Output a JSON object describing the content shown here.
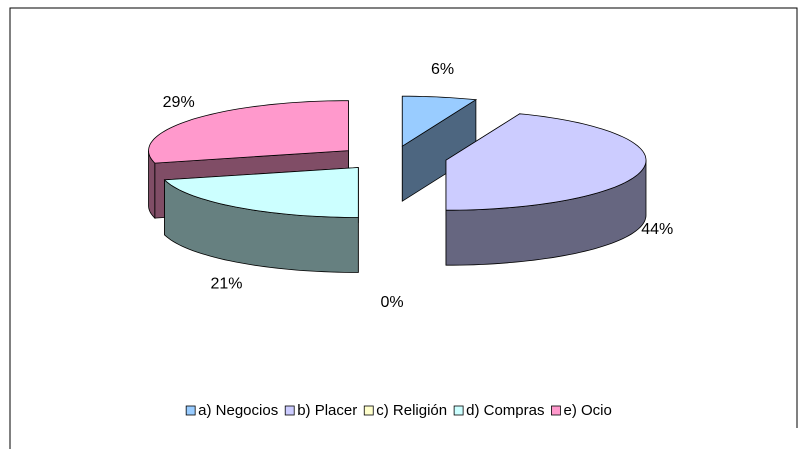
{
  "chart_data": {
    "type": "pie",
    "categories": [
      "a) Negocios",
      "b) Placer",
      "c) Religión",
      "d) Compras",
      "e) Ocio"
    ],
    "values": [
      6,
      44,
      0,
      21,
      29
    ],
    "value_labels": [
      "6%",
      "44%",
      "0%",
      "21%",
      "29%"
    ],
    "colors": [
      "#99ccff",
      "#ccccff",
      "#ffffcc",
      "#ccffff",
      "#ff99cc"
    ],
    "legend": "bottom"
  }
}
